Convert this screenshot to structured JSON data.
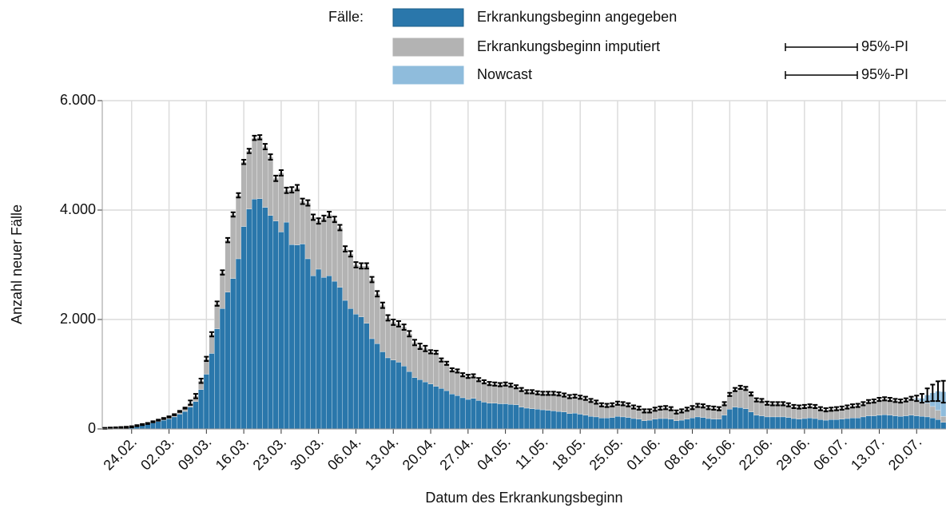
{
  "chart_data": {
    "type": "stacked-bar",
    "legend_title": "Fälle:",
    "interval_label": "95%-PI",
    "y_label": "Anzahl neuer Fälle",
    "x_label": "Datum des Erkrankungsbeginn",
    "ylim": [
      0,
      6000
    ],
    "yticks": [
      0,
      {
        "value": 2000,
        "label": "2.000"
      },
      {
        "value": 4000,
        "label": "4.000"
      },
      {
        "value": 6000,
        "label": "6.000"
      }
    ],
    "grid": true,
    "categories": [
      null,
      null,
      null,
      null,
      null,
      "24.02.",
      null,
      null,
      null,
      null,
      null,
      null,
      "02.03.",
      null,
      null,
      null,
      null,
      null,
      null,
      "09.03.",
      null,
      null,
      null,
      null,
      null,
      null,
      "16.03.",
      null,
      null,
      null,
      null,
      null,
      null,
      "23.03.",
      null,
      null,
      null,
      null,
      null,
      null,
      "30.03.",
      null,
      null,
      null,
      null,
      null,
      null,
      "06.04.",
      null,
      null,
      null,
      null,
      null,
      null,
      "13.04.",
      null,
      null,
      null,
      null,
      null,
      null,
      "20.04.",
      null,
      null,
      null,
      null,
      null,
      null,
      "27.04.",
      null,
      null,
      null,
      null,
      null,
      null,
      "04.05.",
      null,
      null,
      null,
      null,
      null,
      null,
      "11.05.",
      null,
      null,
      null,
      null,
      null,
      null,
      "18.05.",
      null,
      null,
      null,
      null,
      null,
      null,
      "25.05.",
      null,
      null,
      null,
      null,
      null,
      null,
      "01.06.",
      null,
      null,
      null,
      null,
      null,
      null,
      "08.06.",
      null,
      null,
      null,
      null,
      null,
      null,
      "15.06.",
      null,
      null,
      null,
      null,
      null,
      null,
      "22.06.",
      null,
      null,
      null,
      null,
      null,
      null,
      "29.06.",
      null,
      null,
      null,
      null,
      null,
      null,
      "06.07.",
      null,
      null,
      null,
      null,
      null,
      null,
      "13.07.",
      null,
      null,
      null,
      null,
      null,
      null,
      "20.07.",
      null,
      null,
      null,
      null,
      null
    ],
    "series": [
      {
        "name": "Erkrankungsbeginn angegeben",
        "color": "#2a77ab",
        "values": [
          8,
          12,
          16,
          20,
          25,
          35,
          50,
          65,
          85,
          110,
          135,
          160,
          185,
          220,
          270,
          320,
          400,
          500,
          720,
          1000,
          1380,
          1830,
          2200,
          2500,
          2750,
          3110,
          3700,
          4020,
          4200,
          4210,
          4050,
          3900,
          3800,
          3600,
          3780,
          3370,
          3360,
          3380,
          3110,
          2800,
          2920,
          2770,
          2800,
          2700,
          2590,
          2350,
          2200,
          2100,
          2050,
          1930,
          1650,
          1560,
          1410,
          1300,
          1260,
          1220,
          1150,
          1050,
          940,
          900,
          860,
          820,
          780,
          740,
          700,
          640,
          610,
          570,
          540,
          560,
          520,
          490,
          470,
          470,
          460,
          460,
          450,
          440,
          400,
          380,
          370,
          360,
          350,
          340,
          330,
          320,
          310,
          280,
          290,
          270,
          250,
          230,
          220,
          200,
          200,
          210,
          230,
          220,
          210,
          190,
          180,
          150,
          160,
          180,
          190,
          190,
          180,
          150,
          160,
          180,
          200,
          220,
          210,
          190,
          180,
          180,
          250,
          360,
          400,
          390,
          370,
          310,
          250,
          240,
          220,
          220,
          220,
          220,
          210,
          190,
          180,
          190,
          200,
          190,
          170,
          160,
          170,
          170,
          180,
          190,
          200,
          200,
          220,
          240,
          240,
          250,
          260,
          250,
          240,
          230,
          240,
          250,
          240,
          230,
          220,
          200,
          170,
          120
        ]
      },
      {
        "name": "Erkrankungsbeginn imputiert",
        "color": "#b3b3b3",
        "values": [
          2,
          3,
          4,
          5,
          5,
          5,
          10,
          15,
          15,
          20,
          25,
          30,
          35,
          40,
          50,
          60,
          80,
          100,
          160,
          280,
          350,
          460,
          660,
          950,
          1170,
          1160,
          1180,
          1060,
          1120,
          1120,
          1110,
          1070,
          780,
          1080,
          580,
          1000,
          1050,
          780,
          1020,
          1070,
          880,
          1080,
          1120,
          1130,
          1090,
          940,
          1000,
          900,
          930,
          1050,
          1080,
          910,
          850,
          730,
          690,
          700,
          710,
          690,
          640,
          610,
          610,
          590,
          620,
          520,
          500,
          440,
          450,
          420,
          420,
          410,
          380,
          370,
          360,
          350,
          350,
          360,
          350,
          330,
          320,
          300,
          310,
          300,
          300,
          310,
          320,
          320,
          310,
          310,
          310,
          310,
          310,
          290,
          270,
          240,
          230,
          230,
          240,
          240,
          230,
          210,
          200,
          180,
          170,
          180,
          190,
          200,
          190,
          160,
          170,
          180,
          190,
          210,
          210,
          200,
          200,
          190,
          210,
          270,
          320,
          370,
          370,
          330,
          280,
          280,
          250,
          240,
          240,
          240,
          230,
          220,
          220,
          220,
          220,
          220,
          200,
          190,
          190,
          200,
          200,
          210,
          220,
          230,
          240,
          260,
          270,
          290,
          290,
          290,
          280,
          280,
          290,
          310,
          300,
          270,
          250,
          210,
          170,
          110
        ],
        "errors": [
          10,
          10,
          10,
          10,
          10,
          10,
          10,
          10,
          10,
          10,
          10,
          10,
          10,
          10,
          10,
          10,
          40,
          40,
          40,
          40,
          40,
          40,
          40,
          40,
          40,
          40,
          40,
          40,
          40,
          40,
          50,
          50,
          50,
          50,
          50,
          50,
          50,
          50,
          50,
          50,
          50,
          50,
          50,
          50,
          50,
          50,
          50,
          50,
          50,
          50,
          50,
          50,
          50,
          50,
          50,
          50,
          50,
          50,
          50,
          50,
          50,
          30,
          30,
          30,
          30,
          30,
          30,
          30,
          30,
          30,
          30,
          30,
          30,
          30,
          30,
          30,
          30,
          30,
          30,
          30,
          30,
          30,
          30,
          30,
          30,
          30,
          30,
          30,
          30,
          30,
          30,
          30,
          30,
          30,
          30,
          30,
          30,
          30,
          30,
          30,
          30,
          30,
          30,
          30,
          30,
          30,
          30,
          30,
          30,
          30,
          30,
          30,
          30,
          30,
          30,
          30,
          30,
          30,
          30,
          30,
          30,
          30,
          30,
          30,
          30,
          30,
          30,
          30,
          30,
          30,
          30,
          30,
          30,
          30,
          30,
          30,
          30,
          30,
          30,
          30,
          30,
          30,
          30,
          30,
          30,
          30,
          30,
          30,
          30,
          30,
          30,
          30,
          null,
          null,
          null,
          null,
          null,
          null
        ]
      },
      {
        "name": "Nowcast",
        "color": "#8fbcdc",
        "values": [
          0,
          0,
          0,
          0,
          0,
          0,
          0,
          0,
          0,
          0,
          0,
          0,
          0,
          0,
          0,
          0,
          0,
          0,
          0,
          0,
          0,
          0,
          0,
          0,
          0,
          0,
          0,
          0,
          0,
          0,
          0,
          0,
          0,
          0,
          0,
          0,
          0,
          0,
          0,
          0,
          0,
          0,
          0,
          0,
          0,
          0,
          0,
          0,
          0,
          0,
          0,
          0,
          0,
          0,
          0,
          0,
          0,
          0,
          0,
          0,
          0,
          0,
          0,
          0,
          0,
          0,
          0,
          0,
          0,
          0,
          0,
          0,
          0,
          0,
          0,
          0,
          0,
          0,
          0,
          0,
          0,
          0,
          0,
          0,
          0,
          0,
          0,
          0,
          0,
          0,
          0,
          0,
          0,
          0,
          0,
          0,
          0,
          0,
          0,
          0,
          0,
          0,
          0,
          0,
          0,
          0,
          0,
          0,
          0,
          0,
          0,
          0,
          0,
          0,
          0,
          0,
          0,
          0,
          0,
          0,
          0,
          0,
          0,
          0,
          0,
          0,
          0,
          0,
          0,
          0,
          0,
          0,
          0,
          0,
          0,
          0,
          0,
          0,
          0,
          0,
          0,
          0,
          0,
          0,
          0,
          0,
          0,
          0,
          0,
          0,
          0,
          0,
          20,
          60,
          150,
          250,
          350,
          450
        ],
        "errors": [
          null,
          null,
          null,
          null,
          null,
          null,
          null,
          null,
          null,
          null,
          null,
          null,
          null,
          null,
          null,
          null,
          null,
          null,
          null,
          null,
          null,
          null,
          null,
          null,
          null,
          null,
          null,
          null,
          null,
          null,
          null,
          null,
          null,
          null,
          null,
          null,
          null,
          null,
          null,
          null,
          null,
          null,
          null,
          null,
          null,
          null,
          null,
          null,
          null,
          null,
          null,
          null,
          null,
          null,
          null,
          null,
          null,
          null,
          null,
          null,
          null,
          null,
          null,
          null,
          null,
          null,
          null,
          null,
          null,
          null,
          null,
          null,
          null,
          null,
          null,
          null,
          null,
          null,
          null,
          null,
          null,
          null,
          null,
          null,
          null,
          null,
          null,
          null,
          null,
          null,
          null,
          null,
          null,
          null,
          null,
          null,
          null,
          null,
          null,
          null,
          null,
          null,
          null,
          null,
          null,
          null,
          null,
          null,
          null,
          null,
          null,
          null,
          null,
          null,
          null,
          null,
          null,
          null,
          null,
          null,
          null,
          null,
          null,
          null,
          null,
          null,
          null,
          null,
          null,
          null,
          null,
          null,
          null,
          null,
          null,
          null,
          null,
          null,
          null,
          null,
          null,
          null,
          null,
          null,
          null,
          null,
          null,
          null,
          null,
          null,
          null,
          null,
          50,
          80,
          120,
          150,
          180,
          200
        ]
      }
    ]
  }
}
